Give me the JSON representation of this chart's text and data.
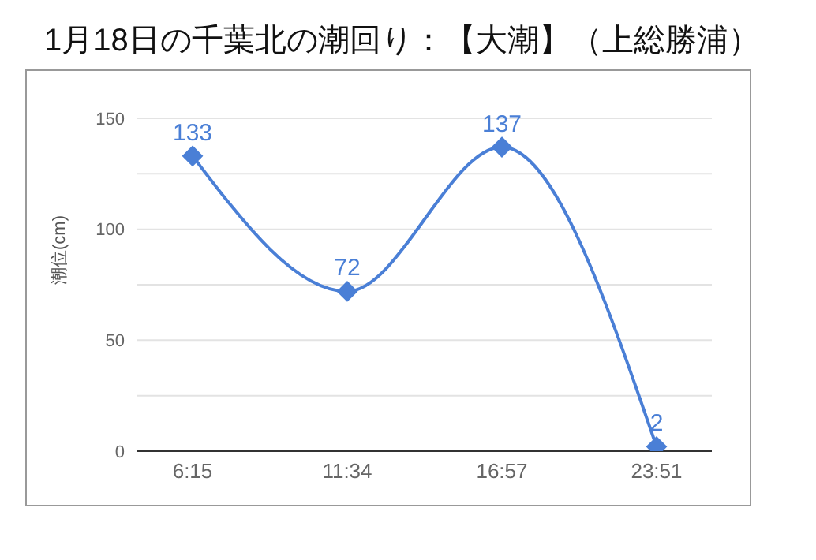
{
  "chart_data": {
    "type": "line",
    "title": "1月18日の千葉北の潮回り：【大潮】（上総勝浦）",
    "ylabel": "潮位(cm)",
    "categories": [
      "6:15",
      "11:34",
      "16:57",
      "23:51"
    ],
    "series": [
      {
        "color": "#4a7fd6",
        "values": [
          133,
          72,
          137,
          2
        ]
      }
    ],
    "ylim": [
      0,
      150
    ],
    "yticks": [
      0,
      {
        "value": 25,
        "label": null
      },
      50,
      {
        "value": 75,
        "label": null
      },
      100,
      {
        "value": 125,
        "label": null
      },
      150
    ],
    "grid": "y",
    "marker": "diamond",
    "line_style": "solid",
    "data_labels": true,
    "legend": false
  }
}
